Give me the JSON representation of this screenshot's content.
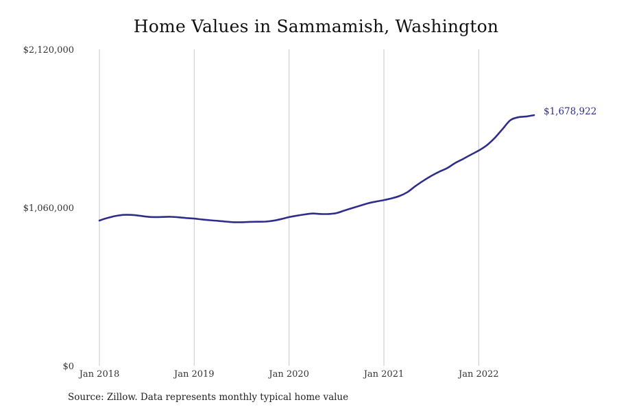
{
  "chart_data": {
    "type": "line",
    "title": "Home Values in Sammamish, Washington",
    "source": "Source: Zillow. Data represents monthly typical home value",
    "ylim": [
      0,
      2120000
    ],
    "y_ticks": [
      {
        "value": 0,
        "label": "$0"
      },
      {
        "value": 1060000,
        "label": "$1,060,000"
      },
      {
        "value": 2120000,
        "label": "$2,120,000"
      }
    ],
    "xlim": [
      "2018-01",
      "2022-08"
    ],
    "x_ticks": [
      {
        "value": "2018-01",
        "label": "Jan 2018"
      },
      {
        "value": "2019-01",
        "label": "Jan 2019"
      },
      {
        "value": "2020-01",
        "label": "Jan 2020"
      },
      {
        "value": "2021-01",
        "label": "Jan 2021"
      },
      {
        "value": "2022-01",
        "label": "Jan 2022"
      }
    ],
    "grid": {
      "vertical": true,
      "horizontal": false
    },
    "series": [
      {
        "color": "#2f2d8a",
        "end_label": "$1,678,922",
        "x": [
          "2018-01",
          "2018-02",
          "2018-03",
          "2018-04",
          "2018-05",
          "2018-06",
          "2018-07",
          "2018-08",
          "2018-09",
          "2018-10",
          "2018-11",
          "2018-12",
          "2019-01",
          "2019-02",
          "2019-03",
          "2019-04",
          "2019-05",
          "2019-06",
          "2019-07",
          "2019-08",
          "2019-09",
          "2019-10",
          "2019-11",
          "2019-12",
          "2020-01",
          "2020-02",
          "2020-03",
          "2020-04",
          "2020-05",
          "2020-06",
          "2020-07",
          "2020-08",
          "2020-09",
          "2020-10",
          "2020-11",
          "2020-12",
          "2021-01",
          "2021-02",
          "2021-03",
          "2021-04",
          "2021-05",
          "2021-06",
          "2021-07",
          "2021-08",
          "2021-09",
          "2021-10",
          "2021-11",
          "2021-12",
          "2022-01",
          "2022-02",
          "2022-03",
          "2022-04",
          "2022-05",
          "2022-06",
          "2022-07",
          "2022-08"
        ],
        "y": [
          973000,
          990000,
          1003000,
          1011000,
          1011000,
          1006000,
          999000,
          996000,
          997000,
          998000,
          995000,
          990000,
          986000,
          980000,
          975000,
          971000,
          966000,
          962000,
          962000,
          964000,
          965000,
          966000,
          972000,
          983000,
          996000,
          1006000,
          1014000,
          1020000,
          1017000,
          1017000,
          1023000,
          1040000,
          1057000,
          1073000,
          1089000,
          1100000,
          1110000,
          1122000,
          1138000,
          1164000,
          1204000,
          1240000,
          1272000,
          1300000,
          1324000,
          1358000,
          1385000,
          1414000,
          1442000,
          1476000,
          1525000,
          1585000,
          1645000,
          1665000,
          1670000,
          1678922
        ]
      }
    ]
  }
}
